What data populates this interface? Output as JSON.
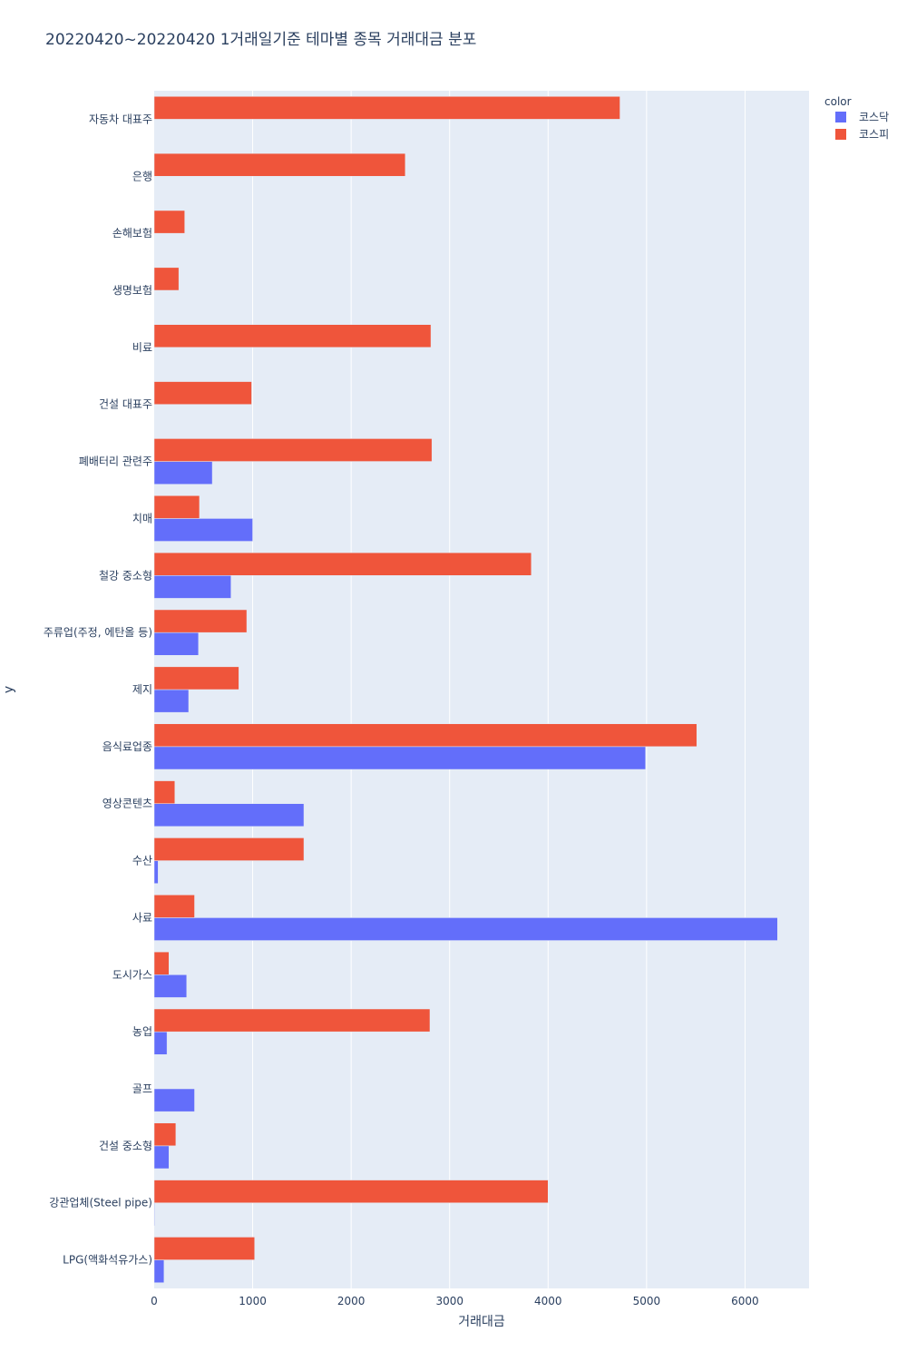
{
  "chart_data": {
    "type": "bar",
    "orientation": "horizontal",
    "barmode": "group",
    "title": "20220420~20220420 1거래일기준 테마별 종목 거래대금 분포",
    "xlabel": "거래대금",
    "ylabel": "y",
    "xlim": [
      0,
      6650
    ],
    "xticks": [
      0,
      1000,
      2000,
      3000,
      4000,
      5000,
      6000
    ],
    "xtick_labels": [
      "0",
      "1000",
      "2000",
      "3000",
      "4000",
      "5000",
      "6000"
    ],
    "grid": true,
    "legend_title": "color",
    "legend_position": "top-right",
    "categories": [
      "자동차 대표주",
      "은행",
      "손해보험",
      "생명보험",
      "비료",
      "건설 대표주",
      "폐배터리 관련주",
      "치매",
      "철강 중소형",
      "주류업(주정, 에탄올 등)",
      "제지",
      "음식료업종",
      "영상콘텐츠",
      "수산",
      "사료",
      "도시가스",
      "농업",
      "골프",
      "건설 중소형",
      "강관업체(Steel pipe)",
      "LPG(액화석유가스)"
    ],
    "series": [
      {
        "name": "코스닥",
        "color": "#636efa",
        "values": [
          0,
          0,
          0,
          0,
          0,
          0,
          590,
          1000,
          780,
          450,
          350,
          4990,
          1520,
          40,
          6330,
          330,
          130,
          410,
          150,
          5,
          100
        ]
      },
      {
        "name": "코스피",
        "color": "#ef553b",
        "values": [
          4730,
          2550,
          310,
          250,
          2810,
          990,
          2820,
          460,
          3830,
          940,
          860,
          5510,
          210,
          1520,
          410,
          150,
          2800,
          0,
          220,
          4000,
          1020
        ]
      }
    ]
  }
}
